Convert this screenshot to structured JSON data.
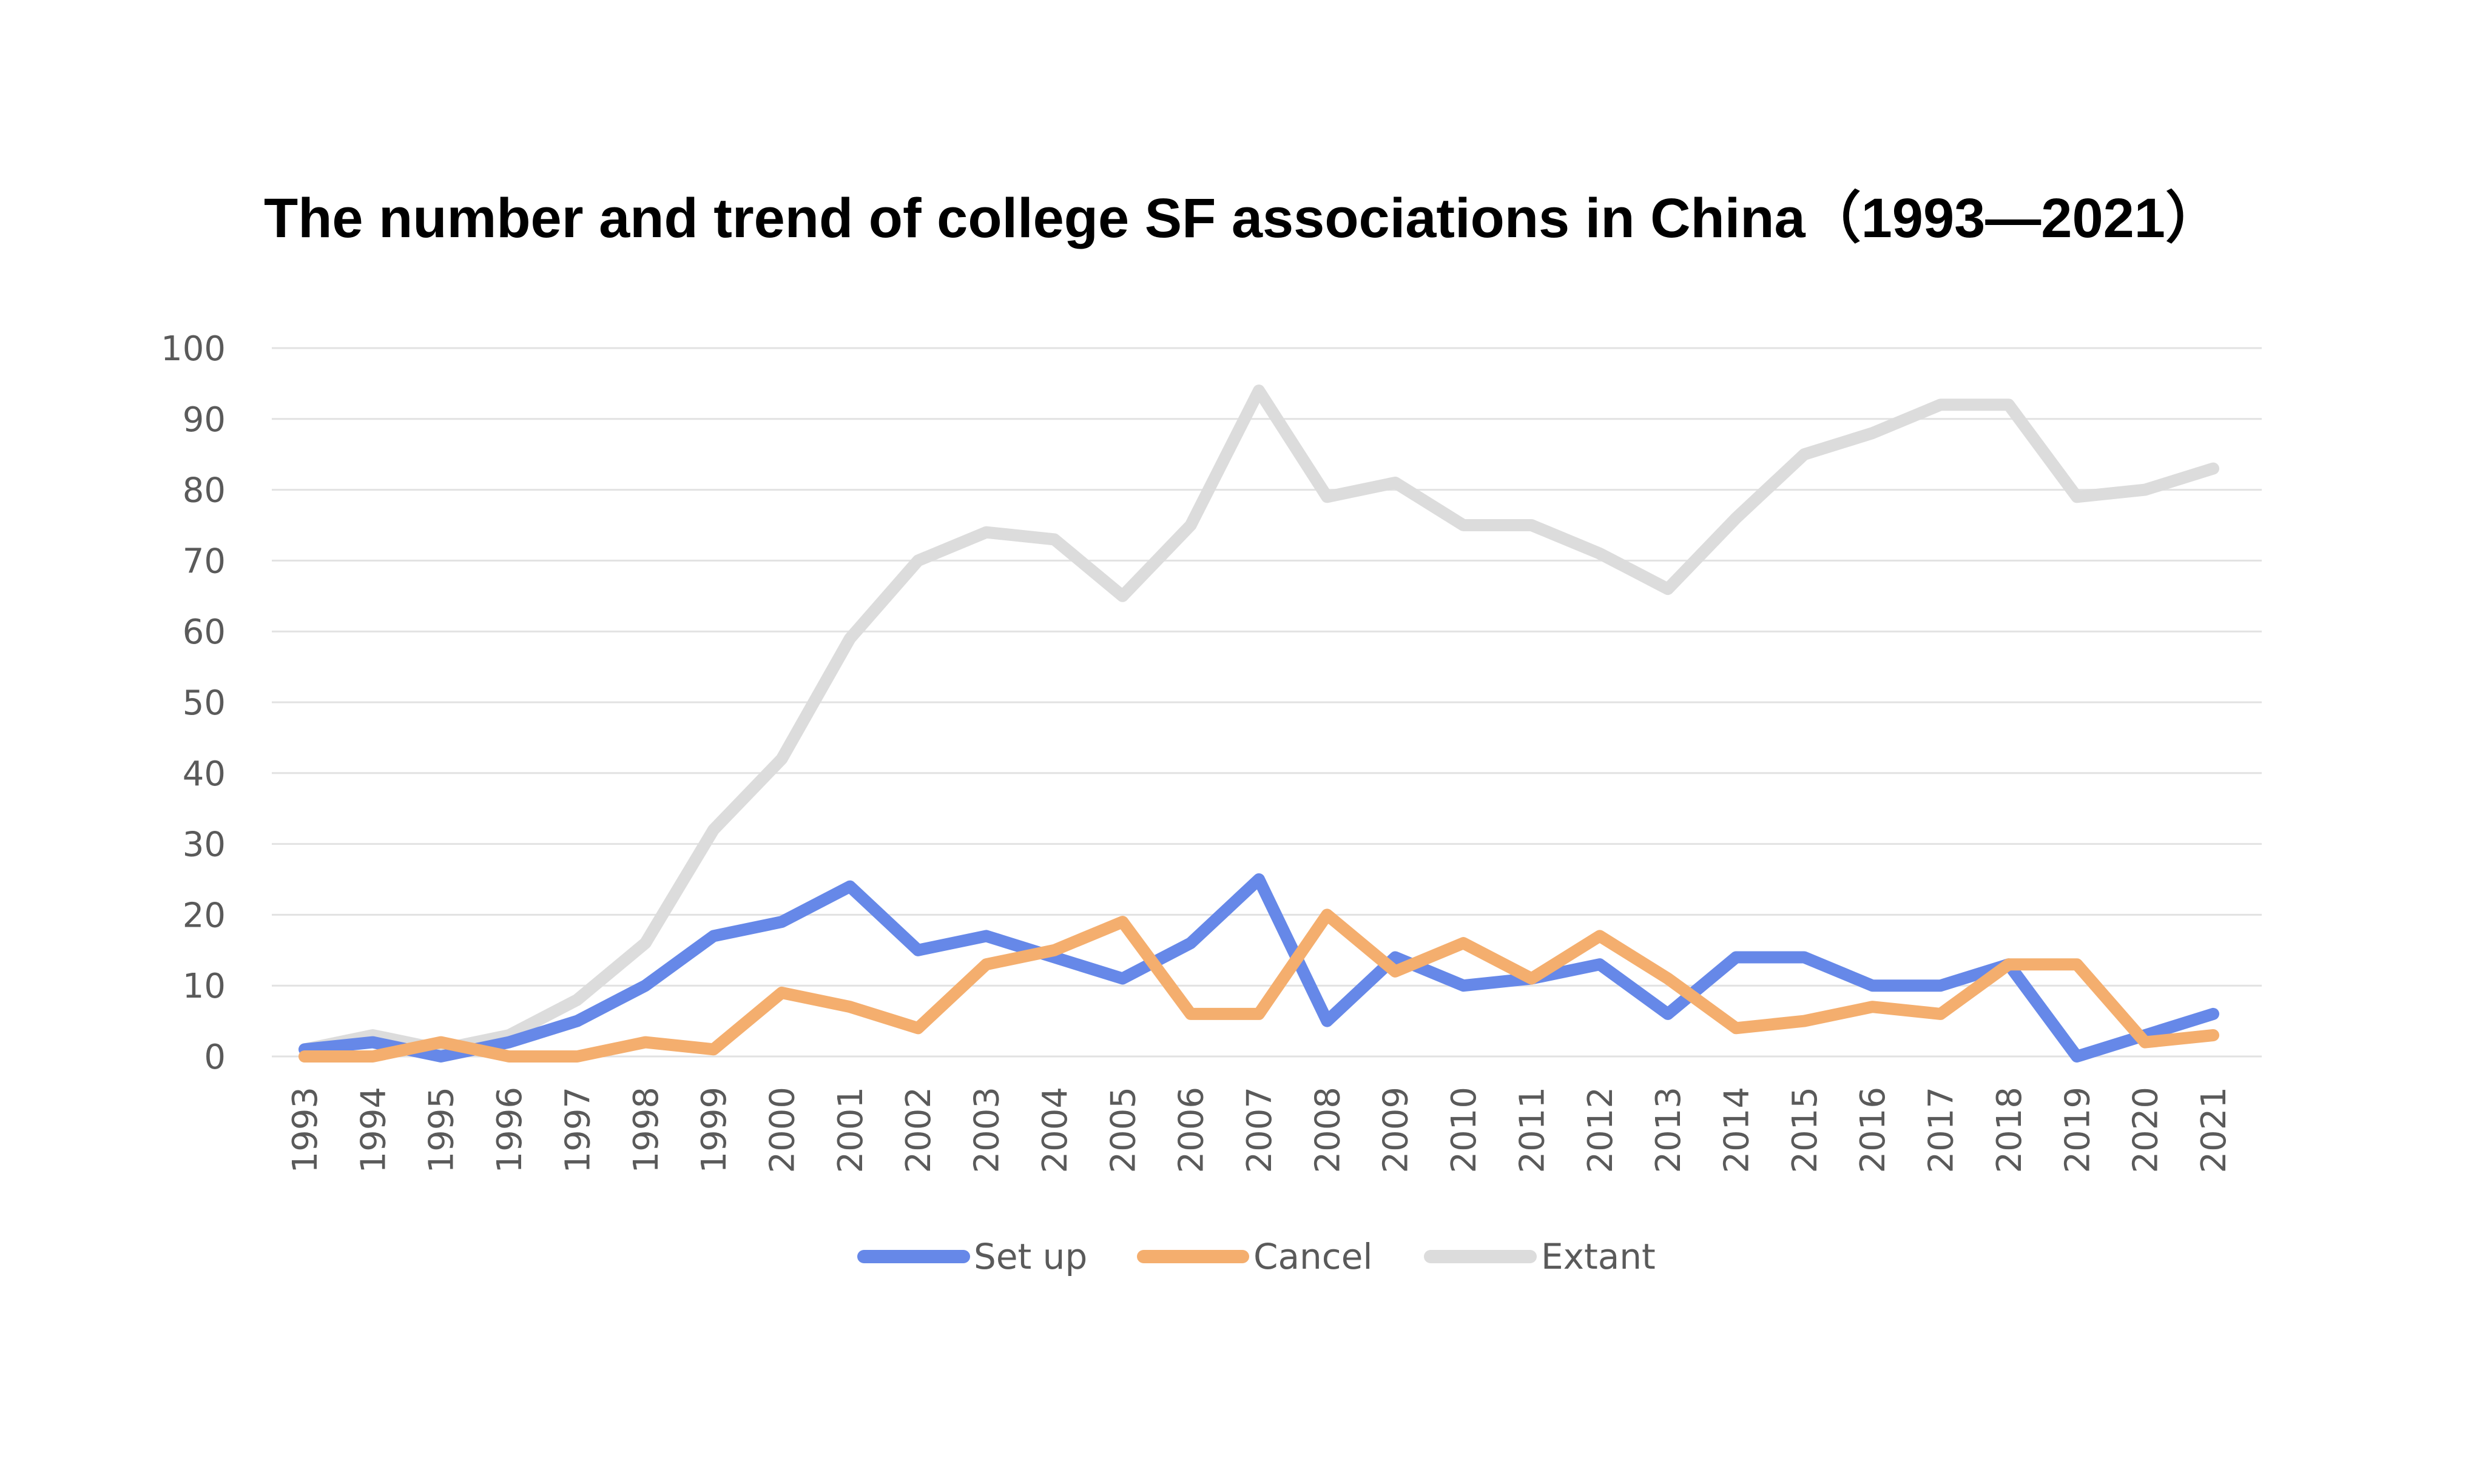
{
  "chart_data": {
    "type": "line",
    "title": "The number and trend of college SF associations in China（1993—2021）",
    "xlabel": "",
    "ylabel": "",
    "ylim": [
      0,
      100
    ],
    "yticks": [
      0,
      10,
      20,
      30,
      40,
      50,
      60,
      70,
      80,
      90,
      100
    ],
    "grid": true,
    "legend": "bottom",
    "categories": [
      "1993",
      "1994",
      "1995",
      "1996",
      "1997",
      "1998",
      "1999",
      "2000",
      "2001",
      "2002",
      "2003",
      "2004",
      "2005",
      "2006",
      "2007",
      "2008",
      "2009",
      "2010",
      "2011",
      "2012",
      "2013",
      "2014",
      "2015",
      "2016",
      "2017",
      "2018",
      "2019",
      "2020",
      "2021"
    ],
    "series": [
      {
        "name": "Set up",
        "color": "#6688e8",
        "values": [
          1,
          2,
          0,
          2,
          5,
          10,
          17,
          19,
          24,
          15,
          17,
          14,
          11,
          16,
          25,
          5,
          14,
          10,
          11,
          13,
          6,
          14,
          14,
          10,
          10,
          13,
          0,
          3,
          6
        ]
      },
      {
        "name": "Cancel",
        "color": "#f4ae6e",
        "values": [
          0,
          0,
          2,
          0,
          0,
          2,
          1,
          9,
          7,
          4,
          13,
          15,
          19,
          6,
          6,
          20,
          12,
          16,
          11,
          17,
          11,
          4,
          5,
          7,
          6,
          13,
          13,
          2,
          3
        ]
      },
      {
        "name": "Extant",
        "color": "#dcdcdc",
        "values": [
          1,
          3,
          1,
          3,
          8,
          16,
          32,
          42,
          59,
          70,
          74,
          73,
          65,
          75,
          94,
          79,
          81,
          75,
          75,
          71,
          66,
          76,
          85,
          88,
          92,
          92,
          79,
          80,
          83
        ]
      }
    ]
  }
}
